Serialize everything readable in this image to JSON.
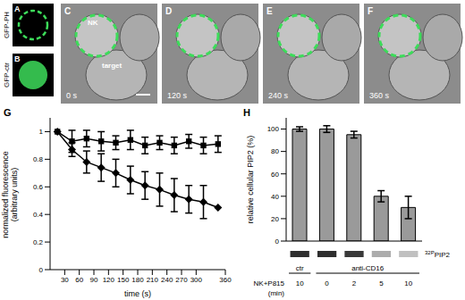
{
  "panels": [
    {
      "label": "A",
      "text": "GFP-PH"
    },
    {
      "label": "B",
      "text": "GFP-ctr"
    },
    {
      "label": "C",
      "time": "0 s",
      "cell_labels": [
        "NK",
        "target"
      ]
    },
    {
      "label": "D",
      "time": "120 s"
    },
    {
      "label": "E",
      "time": "240 s"
    },
    {
      "label": "F",
      "time": "360 s"
    }
  ],
  "chart_data": [
    {
      "panel": "G",
      "type": "line",
      "x_label": "time (s)",
      "y_label": [
        "normalized fluorescence",
        "(arbitrary units)"
      ],
      "x": [
        15,
        45,
        75,
        105,
        135,
        165,
        195,
        225,
        255,
        285,
        315,
        345
      ],
      "series": [
        {
          "color": "#000000",
          "marker": "square",
          "values": [
            1.0,
            0.93,
            0.95,
            0.93,
            0.92,
            0.94,
            0.9,
            0.92,
            0.9,
            0.93,
            0.9,
            0.91
          ],
          "errors": [
            0,
            0.08,
            0.06,
            0.07,
            0.05,
            0.07,
            0.06,
            0.05,
            0.06,
            0.05,
            0.06,
            0.06
          ]
        },
        {
          "color": "#000000",
          "marker": "diamond",
          "values": [
            1.0,
            0.87,
            0.78,
            0.74,
            0.7,
            0.65,
            0.61,
            0.58,
            0.54,
            0.51,
            0.49,
            0.45
          ],
          "errors": [
            0,
            0.05,
            0.08,
            0.1,
            0.1,
            0.1,
            0.1,
            0.12,
            0.12,
            0.1,
            0.12,
            0
          ]
        }
      ],
      "xlim": [
        0,
        360
      ],
      "xticks": [
        30,
        60,
        90,
        120,
        150,
        180,
        210,
        240,
        270,
        300,
        360
      ],
      "ylim": [
        0,
        1.1
      ],
      "yticks": [
        0,
        0.2,
        0.4,
        0.6,
        0.8,
        1
      ]
    },
    {
      "panel": "H",
      "type": "bar",
      "y_label": "relative cellular PIP2 (%)",
      "category_title": [
        "NK+P815",
        "(min)"
      ],
      "categories": [
        "10",
        "0",
        "2",
        "5",
        "10"
      ],
      "group_labels": [
        "ctr",
        "anti-CD16",
        "anti-CD16",
        "anti-CD16",
        "anti-CD16"
      ],
      "band_label": {
        "superscript": "32P",
        "text": "PIP2"
      },
      "values": [
        100,
        100,
        95,
        40,
        30
      ],
      "errors": [
        2,
        3,
        3,
        5,
        10
      ],
      "color": "#9a9a9a",
      "ylim": [
        0,
        110
      ],
      "yticks": [
        0,
        20,
        40,
        60,
        80,
        100
      ]
    }
  ]
}
